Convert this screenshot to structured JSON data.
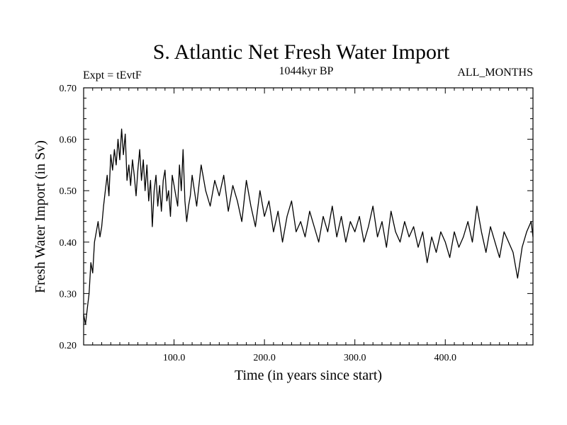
{
  "chart_data": {
    "type": "line",
    "title": "S. Atlantic Net Fresh Water Import",
    "subtitle_left": "Expt = tEvtF",
    "subtitle_center": "1044kyr BP",
    "subtitle_right": "ALL_MONTHS",
    "xlabel": "Time (in years since start)",
    "ylabel": "Fresh Water Import (in Sv)",
    "xlim": [
      0,
      497
    ],
    "ylim": [
      0.2,
      0.7
    ],
    "x_ticks": [
      100,
      200,
      300,
      400
    ],
    "x_tick_labels": [
      "100.0",
      "200.0",
      "300.0",
      "400.0"
    ],
    "y_ticks": [
      0.2,
      0.3,
      0.4,
      0.5,
      0.6,
      0.7
    ],
    "y_tick_labels": [
      "0.20",
      "0.30",
      "0.40",
      "0.50",
      "0.60",
      "0.70"
    ],
    "grid": false,
    "series": [
      {
        "name": "Net Fresh Water Import",
        "x": [
          0,
          2,
          4,
          6,
          8,
          10,
          12,
          14,
          16,
          18,
          20,
          22,
          24,
          26,
          28,
          30,
          32,
          34,
          36,
          38,
          40,
          42,
          44,
          46,
          48,
          50,
          52,
          54,
          56,
          58,
          60,
          62,
          64,
          66,
          68,
          70,
          72,
          74,
          76,
          78,
          80,
          82,
          84,
          86,
          88,
          90,
          92,
          94,
          96,
          98,
          100,
          102,
          104,
          106,
          108,
          110,
          112,
          114,
          116,
          118,
          120,
          125,
          130,
          135,
          140,
          145,
          150,
          155,
          160,
          165,
          170,
          175,
          180,
          185,
          190,
          195,
          200,
          205,
          210,
          215,
          220,
          225,
          230,
          235,
          240,
          245,
          250,
          255,
          260,
          265,
          270,
          275,
          280,
          285,
          290,
          295,
          300,
          305,
          310,
          315,
          320,
          325,
          330,
          335,
          340,
          345,
          350,
          355,
          360,
          365,
          370,
          375,
          380,
          385,
          390,
          395,
          400,
          405,
          410,
          415,
          420,
          425,
          430,
          435,
          440,
          445,
          450,
          455,
          460,
          465,
          470,
          475,
          480,
          485,
          490,
          495,
          497
        ],
        "values": [
          0.26,
          0.24,
          0.27,
          0.3,
          0.36,
          0.34,
          0.4,
          0.42,
          0.44,
          0.41,
          0.43,
          0.47,
          0.5,
          0.53,
          0.49,
          0.57,
          0.54,
          0.58,
          0.55,
          0.6,
          0.56,
          0.62,
          0.57,
          0.61,
          0.52,
          0.55,
          0.51,
          0.56,
          0.53,
          0.49,
          0.54,
          0.58,
          0.52,
          0.56,
          0.5,
          0.55,
          0.48,
          0.52,
          0.43,
          0.5,
          0.53,
          0.47,
          0.51,
          0.46,
          0.52,
          0.54,
          0.48,
          0.5,
          0.45,
          0.53,
          0.51,
          0.49,
          0.47,
          0.55,
          0.5,
          0.58,
          0.48,
          0.44,
          0.47,
          0.49,
          0.53,
          0.47,
          0.55,
          0.5,
          0.47,
          0.52,
          0.49,
          0.53,
          0.46,
          0.51,
          0.48,
          0.44,
          0.52,
          0.47,
          0.43,
          0.5,
          0.45,
          0.48,
          0.42,
          0.46,
          0.4,
          0.45,
          0.48,
          0.42,
          0.44,
          0.41,
          0.46,
          0.43,
          0.4,
          0.45,
          0.42,
          0.47,
          0.41,
          0.45,
          0.4,
          0.44,
          0.42,
          0.45,
          0.4,
          0.43,
          0.47,
          0.41,
          0.44,
          0.39,
          0.46,
          0.42,
          0.4,
          0.44,
          0.41,
          0.43,
          0.39,
          0.42,
          0.36,
          0.41,
          0.38,
          0.42,
          0.4,
          0.37,
          0.42,
          0.39,
          0.41,
          0.44,
          0.4,
          0.47,
          0.42,
          0.38,
          0.43,
          0.4,
          0.37,
          0.42,
          0.4,
          0.38,
          0.33,
          0.39,
          0.42,
          0.44,
          0.41
        ]
      }
    ]
  }
}
